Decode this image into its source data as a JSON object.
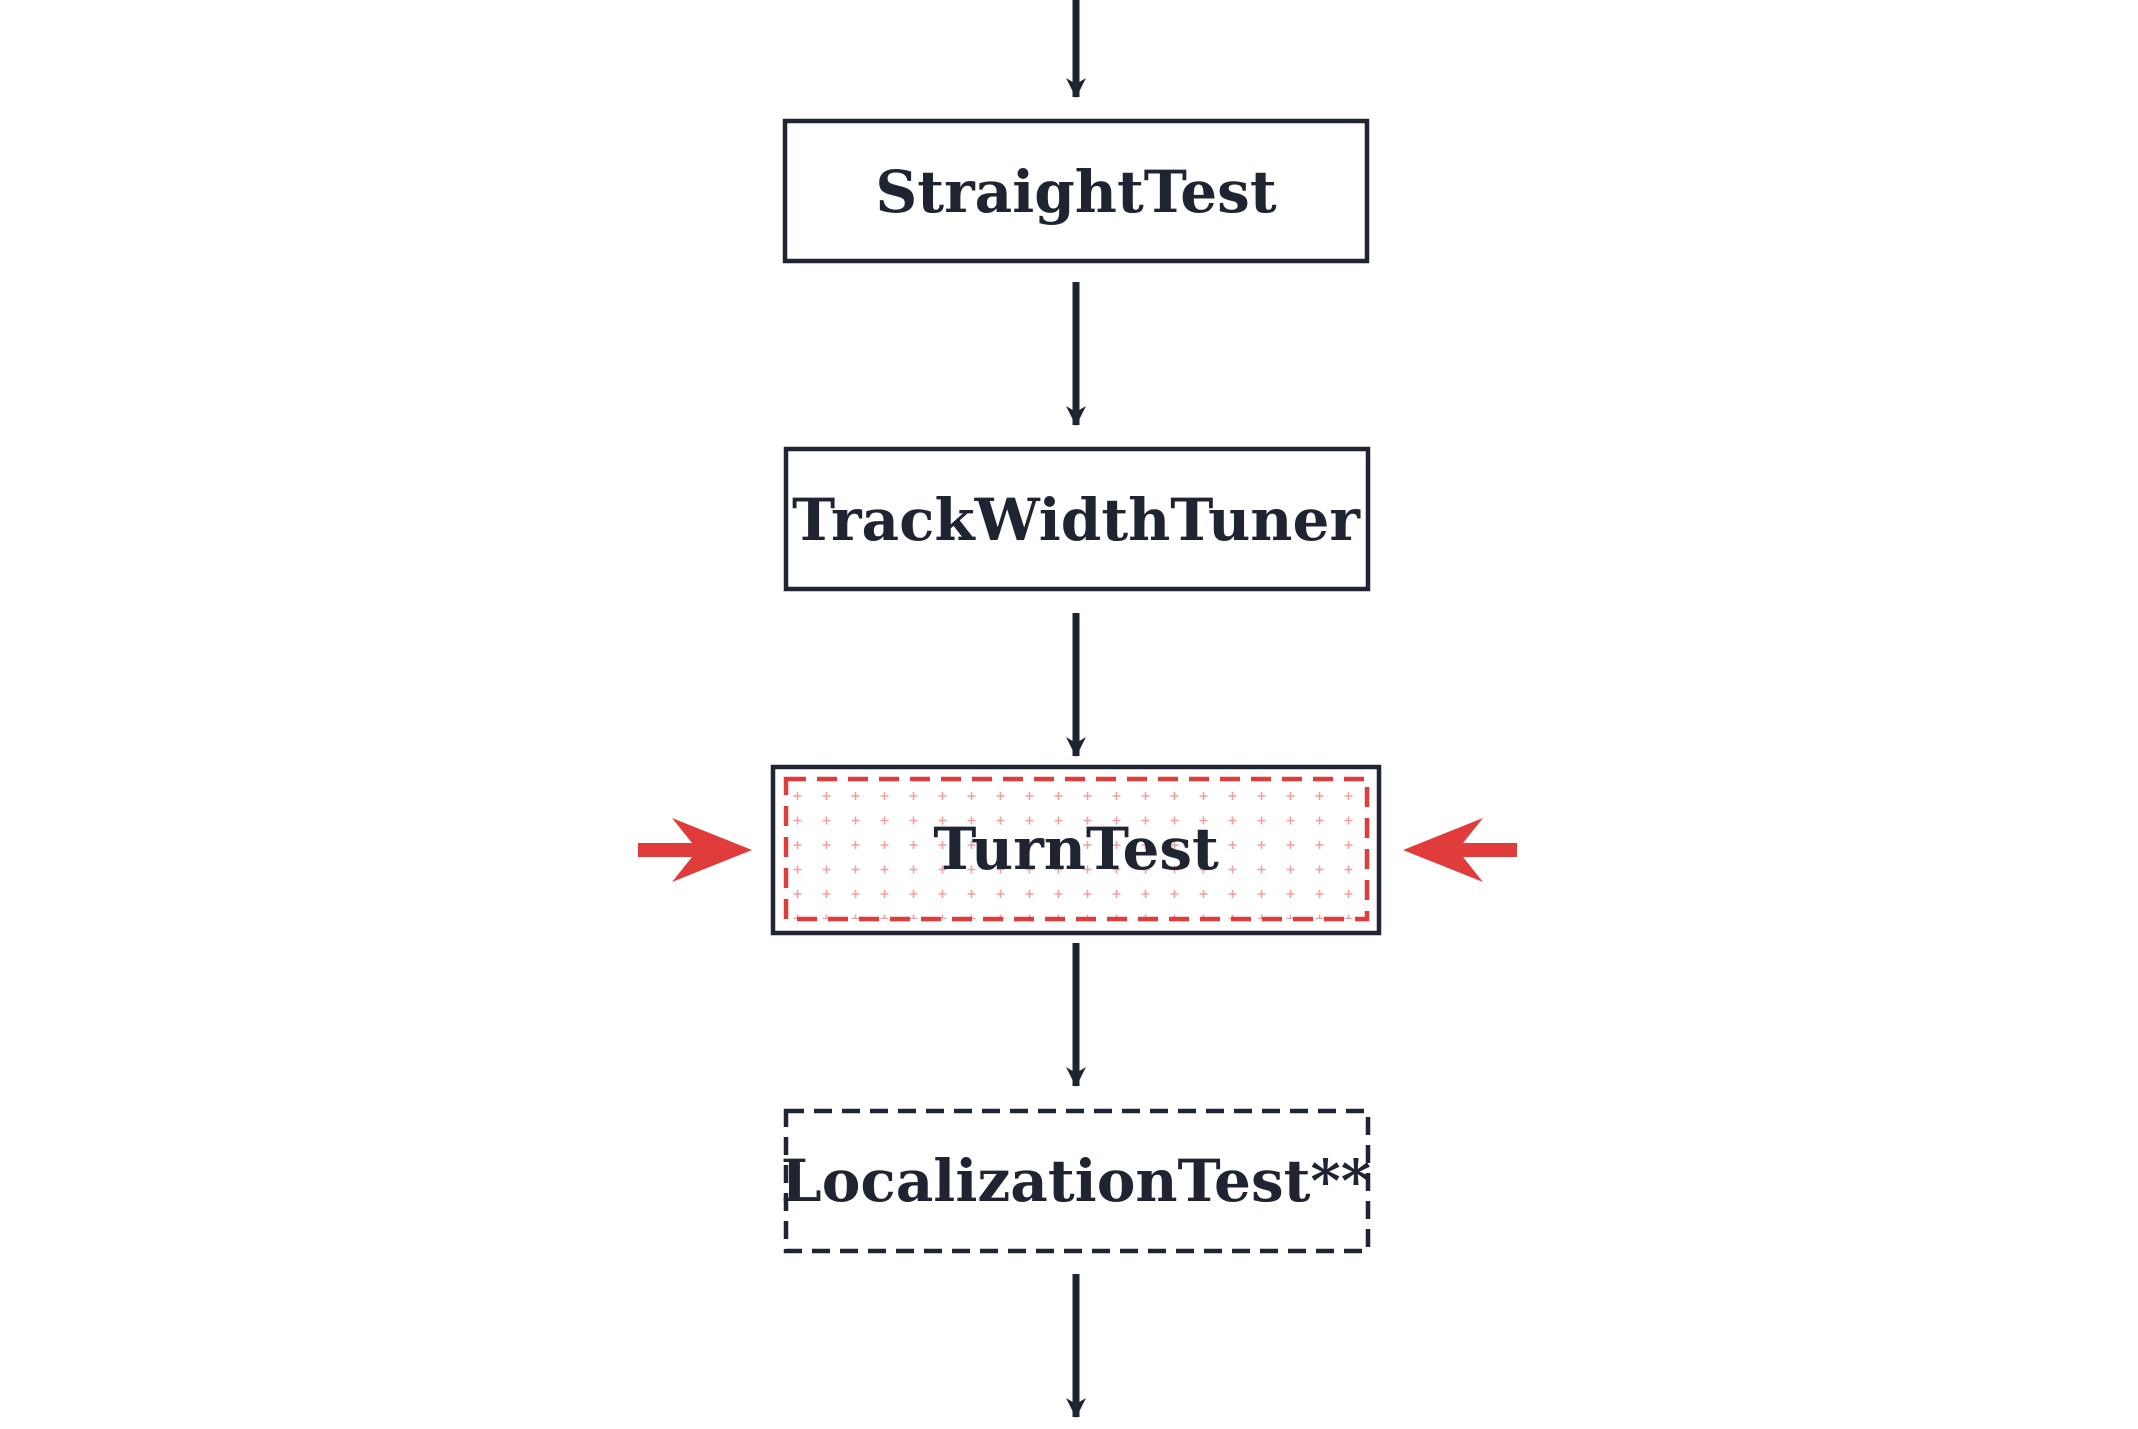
{
  "flow": {
    "steps": [
      {
        "label": "StraightTest",
        "status": "normal"
      },
      {
        "label": "TrackWidthTuner",
        "status": "normal"
      },
      {
        "label": "TurnTest",
        "status": "highlighted"
      },
      {
        "label": "LocalizationTest**",
        "status": "optional"
      }
    ]
  },
  "colors": {
    "ink": "#1f2433",
    "highlight": "#e03c3c",
    "highlight_pattern": "#f2a0a0",
    "background": "#ffffff"
  },
  "icons": {
    "pointer_left": "arrow-right-icon",
    "pointer_right": "arrow-left-icon"
  }
}
